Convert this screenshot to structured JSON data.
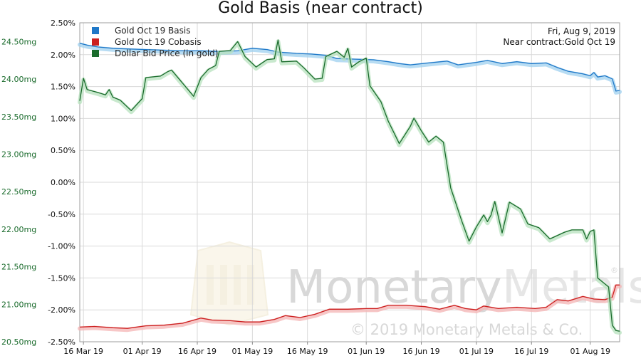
{
  "chart_data": {
    "type": "line",
    "title": "Gold Basis (near contract)",
    "info": {
      "date": "Fri, Aug 9, 2019",
      "contract": "Near contract:Gold Oct 19"
    },
    "watermark": {
      "brand_left": "Monetary",
      "brand_right": "Metals",
      "registered": "®",
      "copyright": "© 2019 Monetary Metals & Co."
    },
    "left_axis": {
      "range": [
        20.5,
        24.75
      ],
      "ticks": [
        20.5,
        21.0,
        21.5,
        22.0,
        22.5,
        23.0,
        23.5,
        24.0,
        24.5
      ],
      "tick_labels": [
        "20.50mg",
        "21.00mg",
        "21.50mg",
        "22.00mg",
        "22.50mg",
        "23.00mg",
        "23.50mg",
        "24.00mg",
        "24.50mg"
      ],
      "color": "#1a6b2c"
    },
    "right_axis": {
      "range": [
        -2.5,
        2.5
      ],
      "ticks": [
        -2.5,
        -2.0,
        -1.5,
        -1.0,
        -0.5,
        0.0,
        0.5,
        1.0,
        1.5,
        2.0,
        2.5
      ],
      "tick_labels": [
        "-2.50%",
        "-2.00%",
        "-1.50%",
        "-1.00%",
        "-0.50%",
        "0.00%",
        "0.50%",
        "1.00%",
        "1.50%",
        "2.00%",
        "2.50%"
      ]
    },
    "x_axis": {
      "range": [
        "2019-03-15",
        "2019-08-09"
      ],
      "ticks": [
        "2019-03-16",
        "2019-04-01",
        "2019-04-16",
        "2019-05-01",
        "2019-05-16",
        "2019-06-01",
        "2019-06-16",
        "2019-07-01",
        "2019-07-16",
        "2019-08-01"
      ],
      "tick_labels": [
        "16 Mar 19",
        "01 Apr 19",
        "16 Apr 19",
        "01 May 19",
        "16 May 19",
        "01 Jun 19",
        "16 Jun 19",
        "01 Jul 19",
        "16 Jul 19",
        "01 Aug 19"
      ]
    },
    "grid": true,
    "legend_position": "top-left",
    "series": [
      {
        "name": "Gold Oct 19 Basis",
        "color": "#1f78c8",
        "axis": "right",
        "points": [
          [
            "2019-03-15",
            2.18
          ],
          [
            "2019-03-17",
            2.15
          ],
          [
            "2019-03-20",
            2.12
          ],
          [
            "2019-03-24",
            2.1
          ],
          [
            "2019-03-28",
            2.09
          ],
          [
            "2019-04-02",
            2.08
          ],
          [
            "2019-04-07",
            2.07
          ],
          [
            "2019-04-12",
            2.06
          ],
          [
            "2019-04-17",
            2.06
          ],
          [
            "2019-04-22",
            2.05
          ],
          [
            "2019-04-27",
            2.06
          ],
          [
            "2019-05-01",
            2.1
          ],
          [
            "2019-05-05",
            2.08
          ],
          [
            "2019-05-08",
            2.04
          ],
          [
            "2019-05-13",
            2.02
          ],
          [
            "2019-05-17",
            2.01
          ],
          [
            "2019-05-21",
            1.99
          ],
          [
            "2019-05-24",
            1.94
          ],
          [
            "2019-05-29",
            1.93
          ],
          [
            "2019-06-03",
            1.92
          ],
          [
            "2019-06-07",
            1.89
          ],
          [
            "2019-06-10",
            1.86
          ],
          [
            "2019-06-13",
            1.84
          ],
          [
            "2019-06-18",
            1.87
          ],
          [
            "2019-06-23",
            1.9
          ],
          [
            "2019-06-26",
            1.84
          ],
          [
            "2019-07-01",
            1.88
          ],
          [
            "2019-07-04",
            1.91
          ],
          [
            "2019-07-08",
            1.86
          ],
          [
            "2019-07-12",
            1.89
          ],
          [
            "2019-07-16",
            1.86
          ],
          [
            "2019-07-20",
            1.87
          ],
          [
            "2019-07-23",
            1.8
          ],
          [
            "2019-07-26",
            1.74
          ],
          [
            "2019-07-30",
            1.7
          ],
          [
            "2019-08-01",
            1.67
          ],
          [
            "2019-08-02",
            1.72
          ],
          [
            "2019-08-03",
            1.65
          ],
          [
            "2019-08-05",
            1.67
          ],
          [
            "2019-08-07",
            1.62
          ],
          [
            "2019-08-08",
            1.43
          ],
          [
            "2019-08-09",
            1.44
          ]
        ]
      },
      {
        "name": "Gold Oct 19 Cobasis",
        "color": "#cc1f1f",
        "axis": "right",
        "points": [
          [
            "2019-03-15",
            -2.27
          ],
          [
            "2019-03-19",
            -2.26
          ],
          [
            "2019-03-24",
            -2.28
          ],
          [
            "2019-03-28",
            -2.29
          ],
          [
            "2019-04-02",
            -2.25
          ],
          [
            "2019-04-07",
            -2.24
          ],
          [
            "2019-04-12",
            -2.21
          ],
          [
            "2019-04-17",
            -2.13
          ],
          [
            "2019-04-20",
            -2.16
          ],
          [
            "2019-04-25",
            -2.17
          ],
          [
            "2019-04-29",
            -2.19
          ],
          [
            "2019-05-03",
            -2.19
          ],
          [
            "2019-05-07",
            -2.15
          ],
          [
            "2019-05-10",
            -2.09
          ],
          [
            "2019-05-14",
            -2.12
          ],
          [
            "2019-05-18",
            -2.07
          ],
          [
            "2019-05-22",
            -1.99
          ],
          [
            "2019-05-27",
            -1.99
          ],
          [
            "2019-06-01",
            -1.98
          ],
          [
            "2019-06-04",
            -1.98
          ],
          [
            "2019-06-07",
            -1.93
          ],
          [
            "2019-06-12",
            -1.93
          ],
          [
            "2019-06-17",
            -1.95
          ],
          [
            "2019-06-21",
            -1.99
          ],
          [
            "2019-06-25",
            -1.93
          ],
          [
            "2019-06-28",
            -1.98
          ],
          [
            "2019-07-01",
            -2.0
          ],
          [
            "2019-07-03",
            -1.94
          ],
          [
            "2019-07-07",
            -1.98
          ],
          [
            "2019-07-12",
            -1.96
          ],
          [
            "2019-07-17",
            -1.98
          ],
          [
            "2019-07-20",
            -1.96
          ],
          [
            "2019-07-23",
            -1.84
          ],
          [
            "2019-07-26",
            -1.86
          ],
          [
            "2019-07-30",
            -1.79
          ],
          [
            "2019-08-02",
            -1.83
          ],
          [
            "2019-08-05",
            -1.84
          ],
          [
            "2019-08-07",
            -1.8
          ],
          [
            "2019-08-08",
            -1.61
          ],
          [
            "2019-08-09",
            -1.61
          ]
        ]
      },
      {
        "name": "Dollar Bid Price (in gold)",
        "color": "#1a6b2c",
        "axis": "left",
        "points": [
          [
            "2019-03-15",
            23.71
          ],
          [
            "2019-03-16",
            24.01
          ],
          [
            "2019-03-17",
            23.86
          ],
          [
            "2019-03-20",
            23.82
          ],
          [
            "2019-03-22",
            23.79
          ],
          [
            "2019-03-23",
            23.86
          ],
          [
            "2019-03-24",
            23.76
          ],
          [
            "2019-03-26",
            23.72
          ],
          [
            "2019-03-29",
            23.58
          ],
          [
            "2019-04-01",
            23.74
          ],
          [
            "2019-04-02",
            24.02
          ],
          [
            "2019-04-06",
            24.04
          ],
          [
            "2019-04-08",
            24.1
          ],
          [
            "2019-04-09",
            24.12
          ],
          [
            "2019-04-15",
            23.77
          ],
          [
            "2019-04-17",
            24.02
          ],
          [
            "2019-04-19",
            24.13
          ],
          [
            "2019-04-21",
            24.18
          ],
          [
            "2019-04-22",
            24.37
          ],
          [
            "2019-04-25",
            24.38
          ],
          [
            "2019-04-27",
            24.5
          ],
          [
            "2019-04-29",
            24.3
          ],
          [
            "2019-05-02",
            24.16
          ],
          [
            "2019-05-05",
            24.26
          ],
          [
            "2019-05-07",
            24.27
          ],
          [
            "2019-05-08",
            24.52
          ],
          [
            "2019-05-09",
            24.23
          ],
          [
            "2019-05-13",
            24.24
          ],
          [
            "2019-05-15",
            24.15
          ],
          [
            "2019-05-18",
            24.0
          ],
          [
            "2019-05-20",
            24.01
          ],
          [
            "2019-05-21",
            24.3
          ],
          [
            "2019-05-24",
            24.37
          ],
          [
            "2019-05-26",
            24.29
          ],
          [
            "2019-05-27",
            24.41
          ],
          [
            "2019-05-28",
            24.16
          ],
          [
            "2019-05-30",
            24.23
          ],
          [
            "2019-06-01",
            24.28
          ],
          [
            "2019-06-02",
            23.91
          ],
          [
            "2019-06-05",
            23.7
          ],
          [
            "2019-06-07",
            23.44
          ],
          [
            "2019-06-10",
            23.14
          ],
          [
            "2019-06-13",
            23.37
          ],
          [
            "2019-06-14",
            23.48
          ],
          [
            "2019-06-16",
            23.31
          ],
          [
            "2019-06-18",
            23.16
          ],
          [
            "2019-06-20",
            23.24
          ],
          [
            "2019-06-22",
            23.16
          ],
          [
            "2019-06-24",
            22.55
          ],
          [
            "2019-06-27",
            22.11
          ],
          [
            "2019-06-29",
            21.84
          ],
          [
            "2019-07-01",
            22.03
          ],
          [
            "2019-07-03",
            22.19
          ],
          [
            "2019-07-04",
            22.1
          ],
          [
            "2019-07-05",
            22.19
          ],
          [
            "2019-07-06",
            22.37
          ],
          [
            "2019-07-08",
            21.95
          ],
          [
            "2019-07-10",
            22.36
          ],
          [
            "2019-07-13",
            22.27
          ],
          [
            "2019-07-15",
            22.07
          ],
          [
            "2019-07-18",
            22.02
          ],
          [
            "2019-07-21",
            21.87
          ],
          [
            "2019-07-25",
            21.96
          ],
          [
            "2019-07-27",
            21.99
          ],
          [
            "2019-07-30",
            21.99
          ],
          [
            "2019-07-31",
            21.87
          ],
          [
            "2019-08-01",
            21.97
          ],
          [
            "2019-08-02",
            21.99
          ],
          [
            "2019-08-03",
            21.35
          ],
          [
            "2019-08-06",
            21.23
          ],
          [
            "2019-08-07",
            20.72
          ],
          [
            "2019-08-08",
            20.65
          ],
          [
            "2019-08-09",
            20.64
          ]
        ]
      }
    ]
  }
}
